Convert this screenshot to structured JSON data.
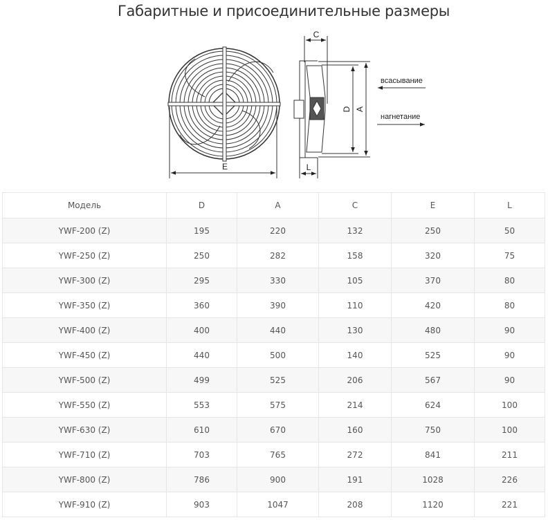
{
  "title": "Габаритные и присоединительные размеры",
  "diagram": {
    "labels": {
      "E": "E",
      "C": "C",
      "D": "D",
      "A": "A",
      "L": "L"
    },
    "suction": "всасывание",
    "discharge": "нагнетание"
  },
  "table": {
    "headers": [
      "Модель",
      "D",
      "A",
      "C",
      "E",
      "L"
    ],
    "rows": [
      [
        "YWF-200 (Z)",
        "195",
        "220",
        "132",
        "250",
        "50"
      ],
      [
        "YWF-250 (Z)",
        "250",
        "282",
        "158",
        "320",
        "75"
      ],
      [
        "YWF-300 (Z)",
        "295",
        "330",
        "105",
        "370",
        "80"
      ],
      [
        "YWF-350 (Z)",
        "360",
        "390",
        "110",
        "420",
        "80"
      ],
      [
        "YWF-400 (Z)",
        "400",
        "440",
        "130",
        "480",
        "90"
      ],
      [
        "YWF-450 (Z)",
        "440",
        "500",
        "140",
        "525",
        "90"
      ],
      [
        "YWF-500 (Z)",
        "499",
        "525",
        "206",
        "567",
        "90"
      ],
      [
        "YWF-550 (Z)",
        "553",
        "575",
        "214",
        "624",
        "100"
      ],
      [
        "YWF-630 (Z)",
        "610",
        "670",
        "160",
        "750",
        "100"
      ],
      [
        "YWF-710 (Z)",
        "703",
        "765",
        "272",
        "841",
        "211"
      ],
      [
        "YWF-800 (Z)",
        "786",
        "900",
        "191",
        "1028",
        "226"
      ],
      [
        "YWF-910 (Z)",
        "903",
        "1047",
        "208",
        "1120",
        "221"
      ]
    ]
  }
}
